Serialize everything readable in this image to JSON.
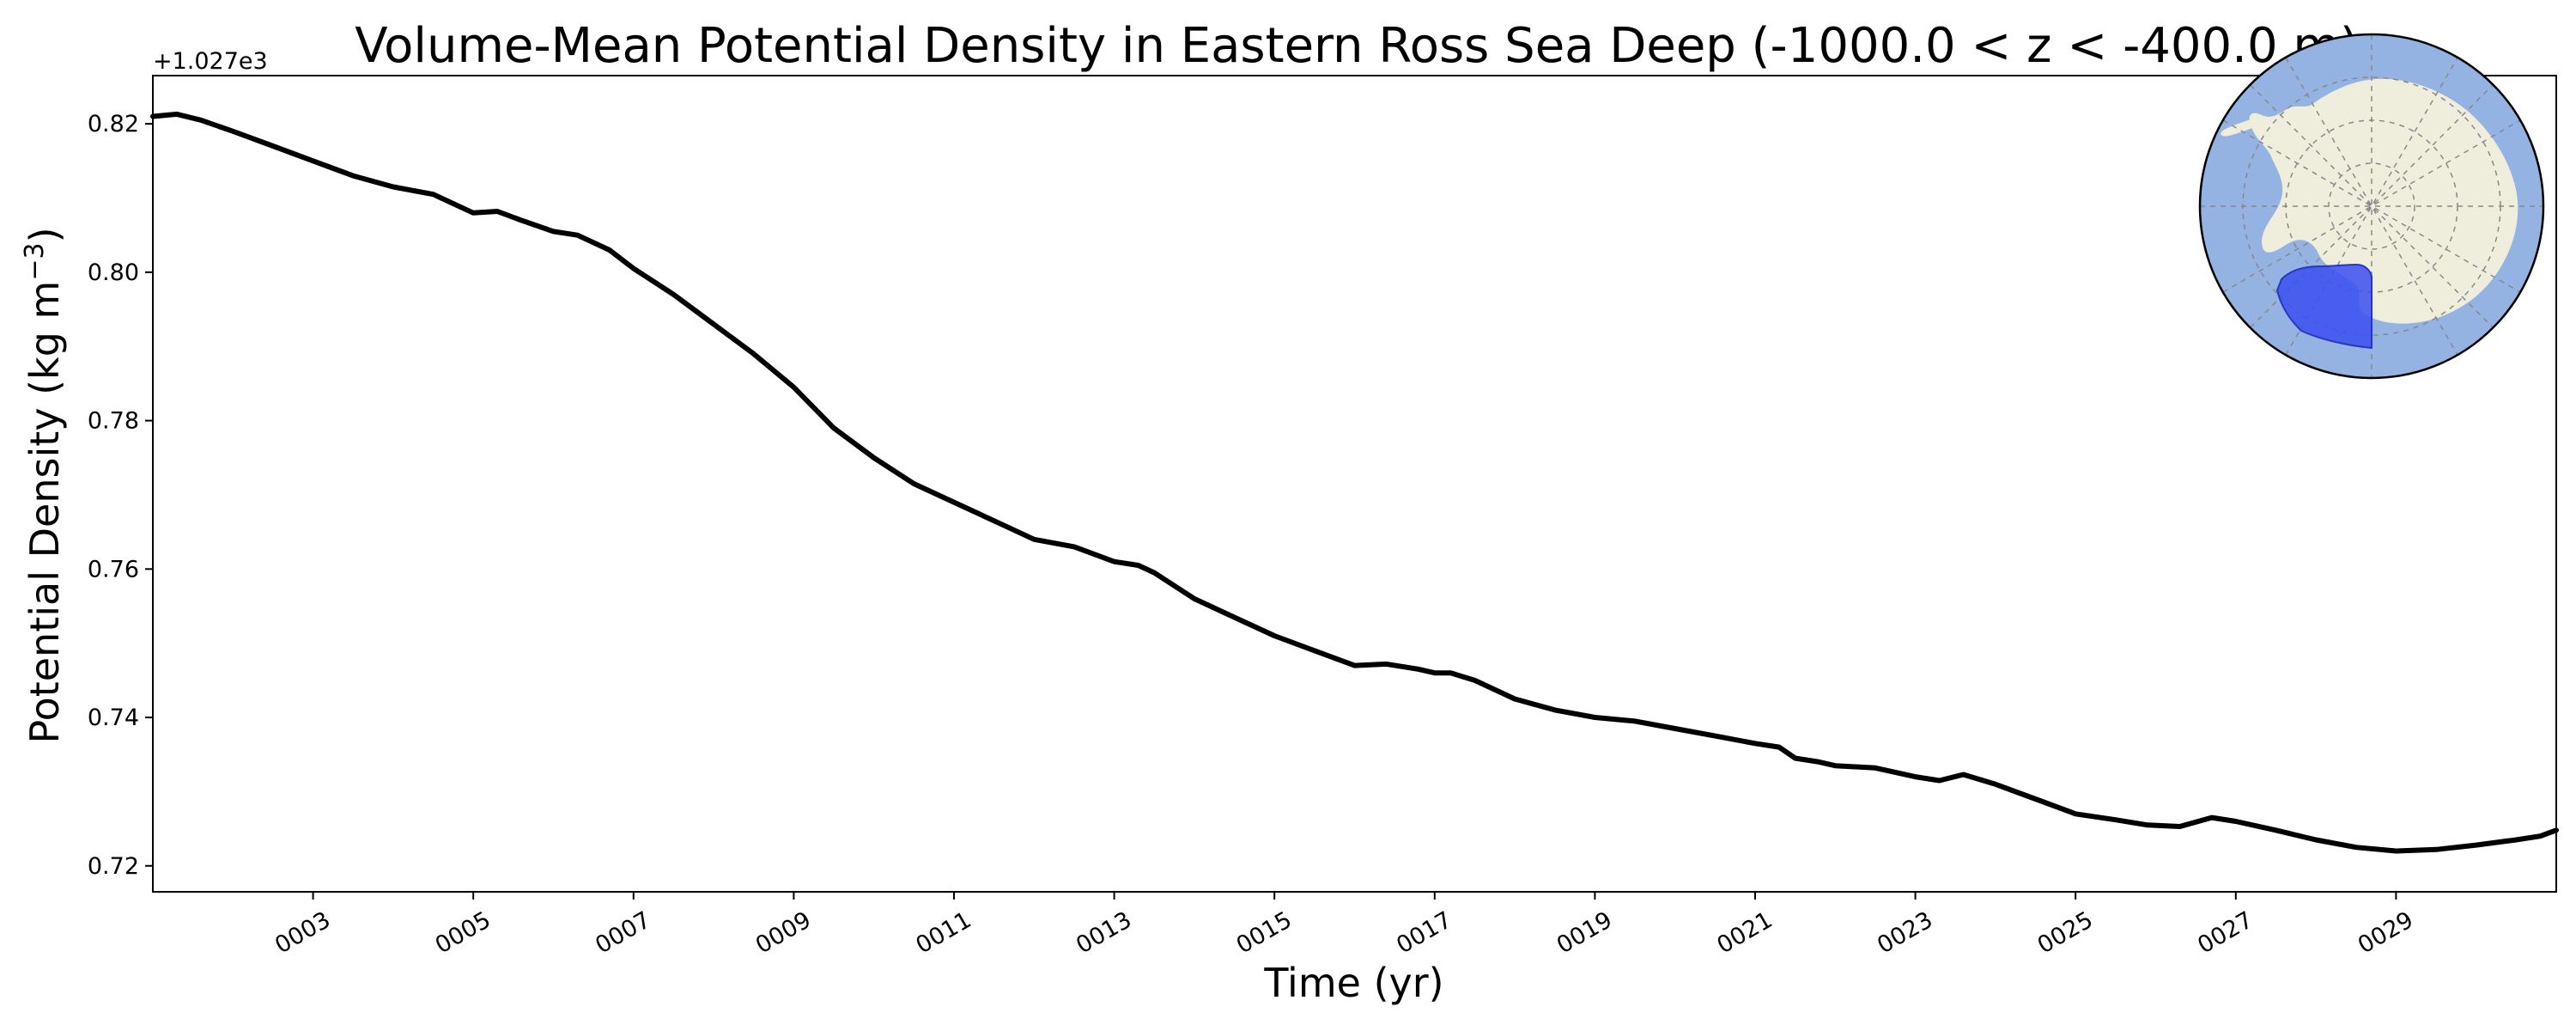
{
  "chart_data": {
    "type": "line",
    "title": "Volume-Mean Potential Density in Eastern Ross Sea Deep (-1000.0 < z < -400.0 m)",
    "xlabel": "Time (yr)",
    "ylabel": "Potential Density (kg m",
    "ylabel_superscript": "−3",
    "ylabel_suffix": ")",
    "offset_text": "+1.027e3",
    "xlim": [
      1.0,
      31.0
    ],
    "ylim": [
      0.7165,
      0.8265
    ],
    "x_ticks": [
      3,
      5,
      7,
      9,
      11,
      13,
      15,
      17,
      19,
      21,
      23,
      25,
      27,
      29
    ],
    "x_tick_labels": [
      "0003",
      "0005",
      "0007",
      "0009",
      "0011",
      "0013",
      "0015",
      "0017",
      "0019",
      "0021",
      "0023",
      "0025",
      "0027",
      "0029"
    ],
    "y_ticks": [
      0.72,
      0.74,
      0.76,
      0.78,
      0.8,
      0.82
    ],
    "y_tick_labels": [
      "0.72",
      "0.74",
      "0.76",
      "0.78",
      "0.80",
      "0.82"
    ],
    "grid": false,
    "series": [
      {
        "name": "Eastern Ross Sea Deep",
        "color": "#000000",
        "x": [
          1.0,
          1.3,
          1.6,
          2.0,
          2.5,
          3.0,
          3.5,
          4.0,
          4.5,
          5.0,
          5.3,
          5.6,
          6.0,
          6.3,
          6.7,
          7.0,
          7.5,
          8.0,
          8.5,
          9.0,
          9.5,
          10.0,
          10.5,
          11.0,
          11.5,
          12.0,
          12.5,
          13.0,
          13.3,
          13.5,
          14.0,
          14.5,
          15.0,
          15.5,
          16.0,
          16.4,
          16.8,
          17.0,
          17.2,
          17.5,
          18.0,
          18.5,
          19.0,
          19.5,
          20.0,
          20.5,
          21.0,
          21.3,
          21.5,
          21.8,
          22.0,
          22.5,
          23.0,
          23.3,
          23.6,
          24.0,
          24.5,
          25.0,
          25.5,
          25.9,
          26.3,
          26.7,
          27.0,
          27.5,
          28.0,
          28.5,
          29.0,
          29.5,
          30.0,
          30.5,
          30.8,
          31.0
        ],
        "y": [
          0.821,
          0.8213,
          0.8205,
          0.819,
          0.817,
          0.815,
          0.813,
          0.8115,
          0.8105,
          0.808,
          0.8082,
          0.807,
          0.8055,
          0.805,
          0.803,
          0.8005,
          0.797,
          0.793,
          0.789,
          0.7845,
          0.779,
          0.775,
          0.7715,
          0.769,
          0.7665,
          0.764,
          0.763,
          0.761,
          0.7605,
          0.7595,
          0.756,
          0.7535,
          0.751,
          0.749,
          0.747,
          0.7472,
          0.7465,
          0.746,
          0.746,
          0.745,
          0.7425,
          0.741,
          0.74,
          0.7395,
          0.7385,
          0.7375,
          0.7365,
          0.736,
          0.7345,
          0.734,
          0.7335,
          0.7332,
          0.732,
          0.7315,
          0.7323,
          0.731,
          0.729,
          0.727,
          0.7262,
          0.7255,
          0.7253,
          0.7265,
          0.726,
          0.7248,
          0.7235,
          0.7225,
          0.722,
          0.7222,
          0.7228,
          0.7235,
          0.724,
          0.7248
        ]
      }
    ]
  },
  "inset_map": {
    "ocean_color": "#94b3e2",
    "land_color": "#efeedd",
    "region_color": "#3b4ff0",
    "description_icon": "antarctica-map-icon"
  }
}
